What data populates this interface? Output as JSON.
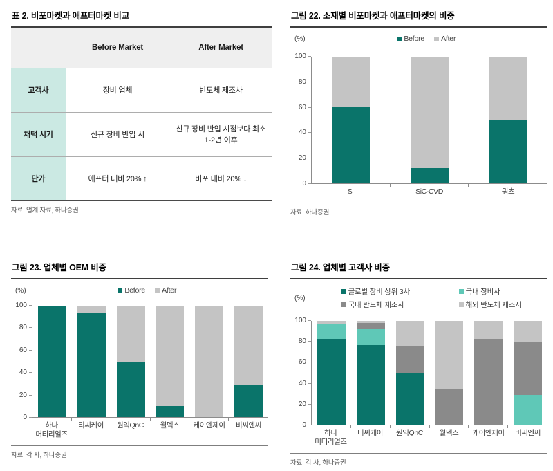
{
  "colors": {
    "teal_dark": "#0a746a",
    "teal_light": "#5fc8b7",
    "gray_dark": "#8a8a8a",
    "gray_light": "#c4c4c4",
    "table_header_bg": "#efefef",
    "table_label_bg": "#cbe9e3"
  },
  "table_panel": {
    "title": "표 2. 비포마켓과 애프터마켓 비교",
    "col_headers": [
      "",
      "Before Market",
      "After Market"
    ],
    "rows": [
      {
        "label": "고객사",
        "before": "장비 업체",
        "after": "반도체 제조사"
      },
      {
        "label": "채택 시기",
        "before": "신규 장비 반입 시",
        "after": "신규 장비 반입 시점보다 최소 1-2년 이후"
      },
      {
        "label": "단가",
        "before": "애프터 대비 20% ↑",
        "after": "비포 대비 20% ↓"
      }
    ],
    "source": "자료: 업계 자료, 하나증권"
  },
  "chart_data": [
    {
      "id": "fig22",
      "type": "bar",
      "stacked": true,
      "title": "그림 22. 소재별 비포마켓과 애프터마켓의 비중",
      "ylabel": "(%)",
      "ylim": [
        0,
        100
      ],
      "yticks": [
        0,
        20,
        40,
        60,
        80,
        100
      ],
      "grid": false,
      "legend_position": "top",
      "legend_columns": 1,
      "categories": [
        "Si",
        "SiC-CVD",
        "쿼츠"
      ],
      "series": [
        {
          "name": "Before",
          "color": "#0a746a",
          "values": [
            60,
            12,
            50
          ]
        },
        {
          "name": "After",
          "color": "#c4c4c4",
          "values": [
            40,
            88,
            50
          ]
        }
      ],
      "source": "자료: 하나증권"
    },
    {
      "id": "fig23",
      "type": "bar",
      "stacked": true,
      "title": "그림 23. 업체별 OEM 비중",
      "ylabel": "(%)",
      "ylim": [
        0,
        100
      ],
      "yticks": [
        0,
        20,
        40,
        60,
        80,
        100
      ],
      "grid": false,
      "legend_position": "top",
      "legend_columns": 1,
      "categories": [
        "하나\n머티리얼즈",
        "티씨케이",
        "원익QnC",
        "월덱스",
        "케이엔제이",
        "비씨엔씨"
      ],
      "series": [
        {
          "name": "Before",
          "color": "#0a746a",
          "values": [
            100,
            93,
            50,
            10,
            0,
            29
          ]
        },
        {
          "name": "After",
          "color": "#c4c4c4",
          "values": [
            0,
            7,
            50,
            90,
            100,
            71
          ]
        }
      ],
      "source": "자료: 각 사, 하나증권"
    },
    {
      "id": "fig24",
      "type": "bar",
      "stacked": true,
      "title": "그림 24. 업체별 고객사 비중",
      "ylabel": "(%)",
      "ylim": [
        0,
        100
      ],
      "yticks": [
        0,
        20,
        40,
        60,
        80,
        100
      ],
      "grid": false,
      "legend_position": "top",
      "legend_columns": 2,
      "categories": [
        "하나\n머티리얼즈",
        "티씨케이",
        "원익QnC",
        "월덱스",
        "케이엔제이",
        "비씨엔씨"
      ],
      "series": [
        {
          "name": "글로벌 장비 상위 3사",
          "color": "#0a746a",
          "values": [
            83,
            77,
            50,
            0,
            0,
            0
          ]
        },
        {
          "name": "국내 장비사",
          "color": "#5fc8b7",
          "values": [
            14,
            16,
            0,
            0,
            0,
            29
          ]
        },
        {
          "name": "국내 반도체 제조사",
          "color": "#8a8a8a",
          "values": [
            0,
            5,
            26,
            35,
            83,
            51
          ]
        },
        {
          "name": "해외 반도체 제조사",
          "color": "#c4c4c4",
          "values": [
            3,
            2,
            24,
            65,
            17,
            20
          ]
        }
      ],
      "source": "자료: 각 사, 하나증권"
    }
  ]
}
